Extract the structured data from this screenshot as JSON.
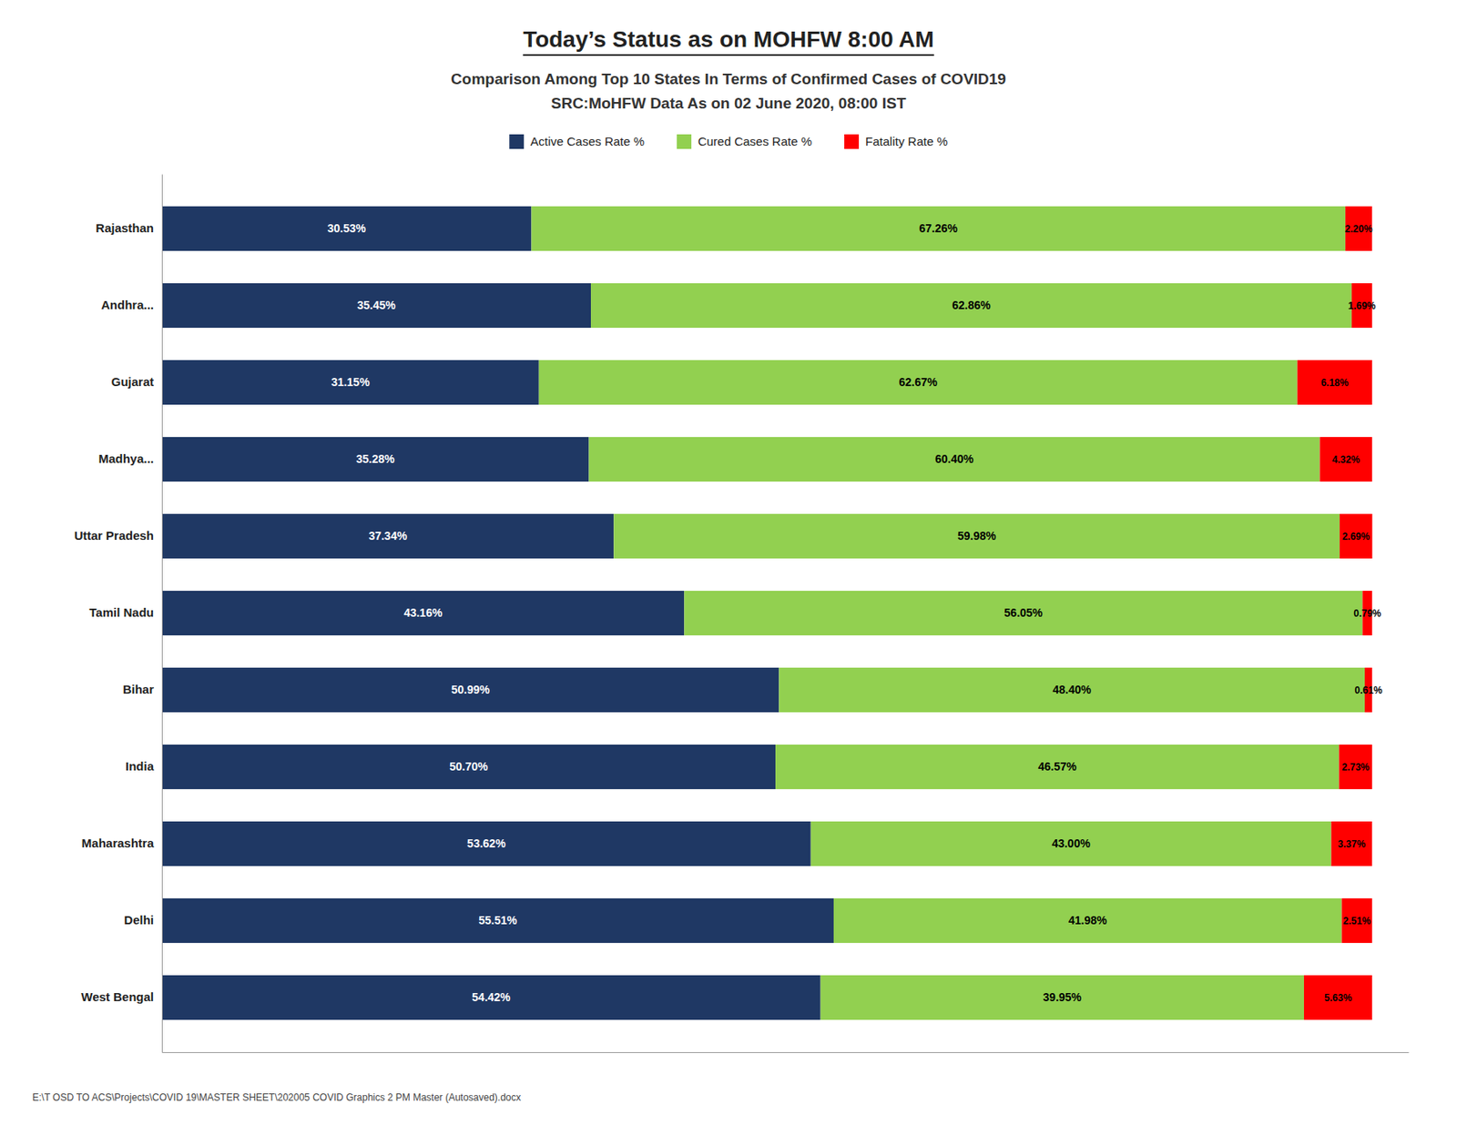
{
  "chart_data": {
    "type": "bar",
    "orientation": "horizontal",
    "stacked": true,
    "data_labels": true,
    "tick_labels": "y",
    "legend": "top",
    "grid": false,
    "title": "Today’s Status as on MOHFW 8:00 AM",
    "subtitle": [
      "Comparison Among Top 10 States In Terms of Confirmed Cases of  COVID19",
      "SRC:MoHFW Data As on 02 June 2020, 08:00 IST"
    ],
    "annotations": [
      "E:\\T OSD TO ACS\\Projects\\COVID 19\\MASTER SHEET\\202005 COVID Graphics 2 PM Master (Autosaved).docx"
    ],
    "categories": [
      "Rajasthan",
      "Andhra...",
      "Gujarat",
      "Madhya...",
      "Uttar Pradesh",
      "Tamil Nadu",
      "Bihar",
      "India",
      "Maharashtra",
      "Delhi",
      "West Bengal"
    ],
    "xlim": [
      0,
      103
    ],
    "series": [
      {
        "name": "Active Cases Rate %",
        "color": "#1F3864",
        "values": [
          30.53,
          35.45,
          31.15,
          35.28,
          37.34,
          43.16,
          50.99,
          50.7,
          53.62,
          55.51,
          54.42
        ],
        "value_labels": [
          "30.53%",
          "35.45%",
          "31.15%",
          "35.28%",
          "37.34%",
          "43.16%",
          "50.99%",
          "50.70%",
          "53.62%",
          "55.51%",
          "54.42%"
        ]
      },
      {
        "name": "Cured Cases Rate %",
        "color": "#92D050",
        "values": [
          67.26,
          62.86,
          62.67,
          60.4,
          59.98,
          56.05,
          48.4,
          46.57,
          43.0,
          41.98,
          39.95
        ],
        "value_labels": [
          "67.26%",
          "62.86%",
          "62.67%",
          "60.40%",
          "59.98%",
          "56.05%",
          "48.40%",
          "46.57%",
          "43.00%",
          "41.98%",
          "39.95%"
        ]
      },
      {
        "name": "Fatality Rate %",
        "color": "#FF0000",
        "values": [
          2.2,
          1.69,
          6.18,
          4.32,
          2.69,
          0.79,
          0.61,
          2.73,
          3.37,
          2.51,
          5.63
        ],
        "value_labels": [
          "2.20%",
          "1.69%",
          "6.18%",
          "4.32%",
          "2.69%",
          "0.79%",
          "0.61%",
          "2.73%",
          "3.37%",
          "2.51%",
          "5.63%"
        ]
      }
    ]
  }
}
